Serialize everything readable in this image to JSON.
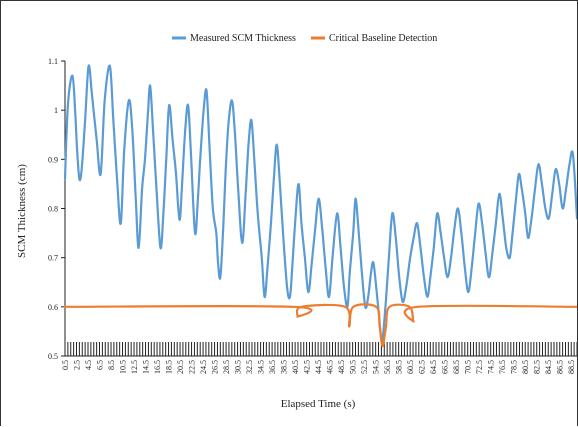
{
  "chart_data": {
    "type": "line",
    "xlabel": "Elapsed Time (s)",
    "ylabel": "SCM Thickness (cm)",
    "ylim": [
      0.5,
      1.1
    ],
    "yticks": [
      "0.5",
      "0.6",
      "0.7",
      "0.8",
      "0.9",
      "1",
      "1.1"
    ],
    "xlim": [
      0.5,
      89.5
    ],
    "xtick_labels": [
      "0.5",
      "2.5",
      "4.5",
      "6.5",
      "8.5",
      "10.5",
      "12.5",
      "14.5",
      "16.5",
      "18.5",
      "20.5",
      "22.5",
      "24.5",
      "26.5",
      "28.5",
      "30.5",
      "32.5",
      "34.5",
      "36.5",
      "38.5",
      "40.5",
      "42.5",
      "44.5",
      "46.5",
      "48.5",
      "50.5",
      "52.5",
      "54.5",
      "56.5",
      "58.5",
      "60.5",
      "62.5",
      "64.5",
      "66.5",
      "68.5",
      "70.5",
      "72.5",
      "74.5",
      "76.5",
      "78.5",
      "80.5",
      "82.5",
      "84.5",
      "86.5",
      "88.5"
    ],
    "legend_position": "top-center",
    "grid": false,
    "series": [
      {
        "name": "Measured SCM Thickness",
        "color": "#5b9bd5",
        "points": [
          [
            0.5,
            0.86
          ],
          [
            1.0,
            1.01
          ],
          [
            1.8,
            1.07
          ],
          [
            2.3,
            0.99
          ],
          [
            2.6,
            0.92
          ],
          [
            3.0,
            0.86
          ],
          [
            3.4,
            0.88
          ],
          [
            4.0,
            0.98
          ],
          [
            4.6,
            1.09
          ],
          [
            5.2,
            1.03
          ],
          [
            6.0,
            0.94
          ],
          [
            6.7,
            0.87
          ],
          [
            7.4,
            1.02
          ],
          [
            8.3,
            1.09
          ],
          [
            8.9,
            0.98
          ],
          [
            9.6,
            0.85
          ],
          [
            10.2,
            0.77
          ],
          [
            10.8,
            0.92
          ],
          [
            11.6,
            1.02
          ],
          [
            12.2,
            0.96
          ],
          [
            12.8,
            0.82
          ],
          [
            13.3,
            0.72
          ],
          [
            13.9,
            0.84
          ],
          [
            14.4,
            0.9
          ],
          [
            14.9,
            0.99
          ],
          [
            15.3,
            1.05
          ],
          [
            15.8,
            0.96
          ],
          [
            16.4,
            0.84
          ],
          [
            17.1,
            0.72
          ],
          [
            17.6,
            0.79
          ],
          [
            18.1,
            0.9
          ],
          [
            18.6,
            1.01
          ],
          [
            19.2,
            0.94
          ],
          [
            19.8,
            0.87
          ],
          [
            20.2,
            0.8
          ],
          [
            20.5,
            0.78
          ],
          [
            20.9,
            0.86
          ],
          [
            21.4,
            0.96
          ],
          [
            21.9,
            1.01
          ],
          [
            22.4,
            0.91
          ],
          [
            23.1,
            0.75
          ],
          [
            23.6,
            0.82
          ],
          [
            24.0,
            0.9
          ],
          [
            24.6,
            1.0
          ],
          [
            25.1,
            1.04
          ],
          [
            25.6,
            0.93
          ],
          [
            26.2,
            0.8
          ],
          [
            26.8,
            0.75
          ],
          [
            27.1,
            0.69
          ],
          [
            27.5,
            0.66
          ],
          [
            28.0,
            0.76
          ],
          [
            28.4,
            0.87
          ],
          [
            28.9,
            0.97
          ],
          [
            29.5,
            1.02
          ],
          [
            30.0,
            0.96
          ],
          [
            30.6,
            0.84
          ],
          [
            31.3,
            0.73
          ],
          [
            31.9,
            0.83
          ],
          [
            32.4,
            0.93
          ],
          [
            32.9,
            0.98
          ],
          [
            33.4,
            0.9
          ],
          [
            34.0,
            0.79
          ],
          [
            34.7,
            0.7
          ],
          [
            35.2,
            0.62
          ],
          [
            35.7,
            0.68
          ],
          [
            36.3,
            0.77
          ],
          [
            36.8,
            0.86
          ],
          [
            37.3,
            0.93
          ],
          [
            37.8,
            0.86
          ],
          [
            38.4,
            0.75
          ],
          [
            39.1,
            0.64
          ],
          [
            39.6,
            0.62
          ],
          [
            40.0,
            0.68
          ],
          [
            40.5,
            0.77
          ],
          [
            41.1,
            0.85
          ],
          [
            41.6,
            0.77
          ],
          [
            42.2,
            0.7
          ],
          [
            42.8,
            0.63
          ],
          [
            43.4,
            0.69
          ],
          [
            44.0,
            0.76
          ],
          [
            44.6,
            0.82
          ],
          [
            45.2,
            0.76
          ],
          [
            45.8,
            0.68
          ],
          [
            46.4,
            0.62
          ],
          [
            47.0,
            0.7
          ],
          [
            47.8,
            0.79
          ],
          [
            48.4,
            0.72
          ],
          [
            49.0,
            0.64
          ],
          [
            49.6,
            0.6
          ],
          [
            50.0,
            0.67
          ],
          [
            50.6,
            0.75
          ],
          [
            51.0,
            0.82
          ],
          [
            51.5,
            0.76
          ],
          [
            52.1,
            0.67
          ],
          [
            52.7,
            0.6
          ],
          [
            53.2,
            0.62
          ],
          [
            53.7,
            0.67
          ],
          [
            54.1,
            0.69
          ],
          [
            54.6,
            0.64
          ],
          [
            55.1,
            0.58
          ],
          [
            55.6,
            0.53
          ],
          [
            56.2,
            0.6
          ],
          [
            56.8,
            0.7
          ],
          [
            57.4,
            0.79
          ],
          [
            58.0,
            0.74
          ],
          [
            58.6,
            0.66
          ],
          [
            59.2,
            0.61
          ],
          [
            59.8,
            0.64
          ],
          [
            60.5,
            0.7
          ],
          [
            61.1,
            0.74
          ],
          [
            61.7,
            0.77
          ],
          [
            62.3,
            0.72
          ],
          [
            62.9,
            0.66
          ],
          [
            63.5,
            0.62
          ],
          [
            64.0,
            0.66
          ],
          [
            64.6,
            0.72
          ],
          [
            65.2,
            0.79
          ],
          [
            65.8,
            0.75
          ],
          [
            66.4,
            0.7
          ],
          [
            67.0,
            0.66
          ],
          [
            67.6,
            0.7
          ],
          [
            68.2,
            0.76
          ],
          [
            68.8,
            0.8
          ],
          [
            69.4,
            0.75
          ],
          [
            70.0,
            0.68
          ],
          [
            70.6,
            0.63
          ],
          [
            71.2,
            0.68
          ],
          [
            71.8,
            0.75
          ],
          [
            72.4,
            0.81
          ],
          [
            73.0,
            0.77
          ],
          [
            73.6,
            0.71
          ],
          [
            74.2,
            0.66
          ],
          [
            74.8,
            0.71
          ],
          [
            75.4,
            0.77
          ],
          [
            76.0,
            0.83
          ],
          [
            76.6,
            0.78
          ],
          [
            77.2,
            0.72
          ],
          [
            77.8,
            0.7
          ],
          [
            78.3,
            0.75
          ],
          [
            78.9,
            0.82
          ],
          [
            79.4,
            0.87
          ],
          [
            79.9,
            0.84
          ],
          [
            80.5,
            0.79
          ],
          [
            81.0,
            0.74
          ],
          [
            81.6,
            0.78
          ],
          [
            82.2,
            0.84
          ],
          [
            82.8,
            0.89
          ],
          [
            83.4,
            0.85
          ],
          [
            84.0,
            0.8
          ],
          [
            84.6,
            0.78
          ],
          [
            85.2,
            0.83
          ],
          [
            85.8,
            0.88
          ],
          [
            86.4,
            0.85
          ],
          [
            87.0,
            0.8
          ],
          [
            87.6,
            0.84
          ],
          [
            88.2,
            0.89
          ],
          [
            88.8,
            0.91
          ],
          [
            89.5,
            0.78
          ]
        ]
      },
      {
        "name": "Critical Baseline Detection",
        "color": "#ed7d31",
        "points": [
          [
            0.5,
            0.6
          ],
          [
            40.2,
            0.6
          ],
          [
            40.9,
            0.58
          ],
          [
            41.6,
            0.6
          ],
          [
            49.2,
            0.6
          ],
          [
            49.9,
            0.56
          ],
          [
            50.6,
            0.6
          ],
          [
            54.6,
            0.6
          ],
          [
            55.2,
            0.56
          ],
          [
            55.7,
            0.52
          ],
          [
            56.3,
            0.56
          ],
          [
            56.9,
            0.6
          ],
          [
            60.4,
            0.6
          ],
          [
            61.1,
            0.57
          ],
          [
            61.8,
            0.6
          ],
          [
            89.5,
            0.6
          ]
        ]
      }
    ]
  }
}
